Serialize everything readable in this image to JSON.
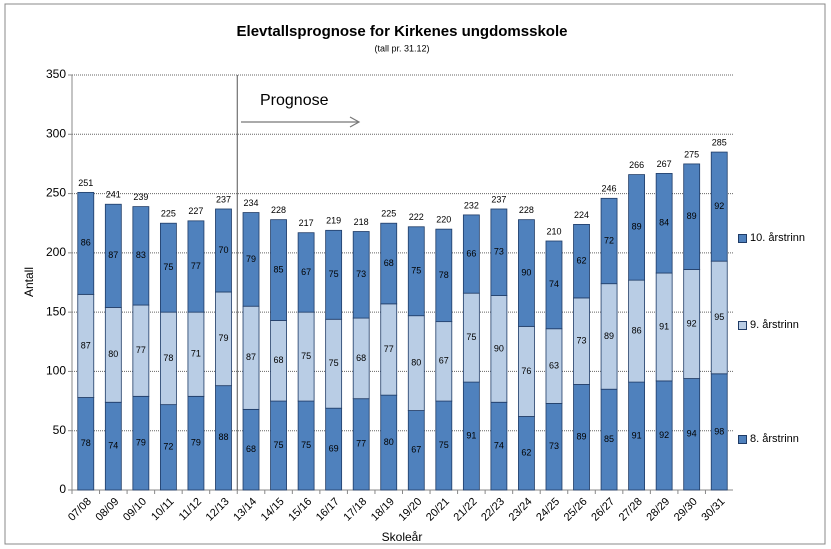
{
  "chart_data": {
    "type": "stacked_bar",
    "title": "Elevtallsprognose for Kirkenes ungdomsskole",
    "subtitle": "(tall pr. 31.12)",
    "x_label": "Skoleår",
    "y_label": "Antall",
    "annotation": "Prognose",
    "categories": [
      "07/08",
      "08/09",
      "09/10",
      "10/11",
      "11/12",
      "12/13",
      "13/14",
      "14/15",
      "15/16",
      "16/17",
      "17/18",
      "18/19",
      "19/20",
      "20/21",
      "21/22",
      "22/23",
      "23/24",
      "24/25",
      "25/26",
      "26/27",
      "27/28",
      "28/29",
      "29/30",
      "30/31"
    ],
    "series": [
      {
        "name": "8. årstrinn",
        "color": "#4f81bd",
        "values": [
          78,
          74,
          79,
          72,
          79,
          88,
          68,
          75,
          75,
          69,
          77,
          80,
          67,
          75,
          91,
          74,
          62,
          73,
          89,
          85,
          91,
          92,
          94,
          98
        ]
      },
      {
        "name": "9. årstrinn",
        "color": "#b9cde5",
        "values": [
          87,
          80,
          77,
          78,
          71,
          79,
          87,
          68,
          75,
          75,
          68,
          77,
          80,
          67,
          75,
          90,
          76,
          63,
          73,
          89,
          86,
          91,
          92,
          95
        ]
      },
      {
        "name": "10. årstrinn",
        "color": "#4f81bd",
        "values": [
          86,
          87,
          83,
          75,
          77,
          70,
          79,
          85,
          67,
          75,
          73,
          68,
          75,
          78,
          66,
          73,
          90,
          74,
          62,
          72,
          89,
          84,
          89,
          92
        ]
      }
    ],
    "totals": [
      251,
      241,
      239,
      225,
      227,
      237,
      234,
      228,
      217,
      219,
      218,
      225,
      222,
      220,
      232,
      237,
      228,
      210,
      224,
      246,
      266,
      267,
      275,
      285
    ],
    "ylim": [
      0,
      350
    ],
    "yticks": [
      0,
      50,
      100,
      150,
      200,
      250,
      300,
      350
    ],
    "grid": true,
    "legend": "right"
  }
}
